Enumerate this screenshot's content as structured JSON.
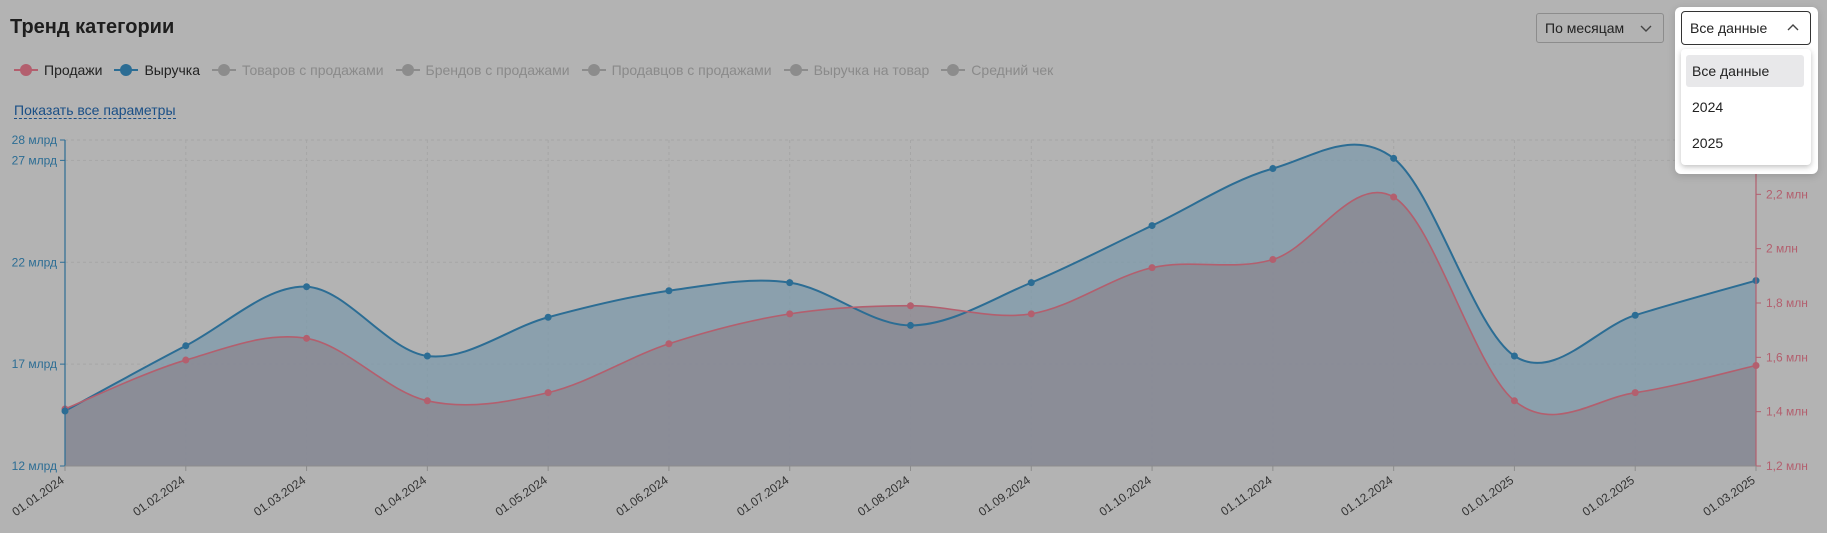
{
  "title": "Тренд категории",
  "legend": [
    {
      "label": "Продажи",
      "color": "#b35f6e",
      "active": true
    },
    {
      "label": "Выручка",
      "color": "#2c6d94",
      "active": true
    },
    {
      "label": "Товаров с продажами",
      "active": false
    },
    {
      "label": "Брендов с продажами",
      "active": false
    },
    {
      "label": "Продавцов с продажами",
      "active": false
    },
    {
      "label": "Выручка на товар",
      "active": false
    },
    {
      "label": "Средний чек",
      "active": false
    }
  ],
  "show_all_link": "Показать все параметры",
  "period_select": {
    "value": "По месяцам"
  },
  "data_select": {
    "value": "Все данные",
    "options": [
      "Все данные",
      "2024",
      "2025"
    ]
  },
  "chart_data": {
    "type": "area",
    "x": [
      "01.01.2024",
      "01.02.2024",
      "01.03.2024",
      "01.04.2024",
      "01.05.2024",
      "01.06.2024",
      "01.07.2024",
      "01.08.2024",
      "01.09.2024",
      "01.10.2024",
      "01.11.2024",
      "01.12.2024",
      "01.01.2025",
      "01.02.2025",
      "01.03.2025"
    ],
    "series": [
      {
        "name": "Выручка",
        "axis": "left",
        "color": "#2c6d94",
        "values": [
          14.7,
          17.9,
          20.8,
          17.4,
          19.3,
          20.6,
          21.0,
          18.9,
          21.0,
          23.8,
          26.6,
          27.1,
          17.4,
          19.4,
          21.1
        ]
      },
      {
        "name": "Продажи",
        "axis": "right",
        "color": "#b35f6e",
        "values": [
          1.41,
          1.59,
          1.67,
          1.44,
          1.47,
          1.65,
          1.76,
          1.79,
          1.76,
          1.93,
          1.96,
          2.19,
          1.44,
          1.47,
          1.57
        ]
      }
    ],
    "y_left": {
      "range": [
        12,
        28
      ],
      "ticks": [
        12,
        17,
        22,
        27,
        28
      ],
      "tick_labels": [
        "12 млрд",
        "17 млрд",
        "22 млрд",
        "27 млрд",
        "28 млрд"
      ]
    },
    "y_right": {
      "range": [
        1.2,
        2.4
      ],
      "ticks": [
        1.2,
        1.4,
        1.6,
        1.8,
        2.0,
        2.2
      ],
      "tick_labels": [
        "1,2 млн",
        "1,4 млн",
        "1,6 млн",
        "1,8 млн",
        "2 млн",
        "2,2 млн"
      ]
    },
    "grid": true
  }
}
